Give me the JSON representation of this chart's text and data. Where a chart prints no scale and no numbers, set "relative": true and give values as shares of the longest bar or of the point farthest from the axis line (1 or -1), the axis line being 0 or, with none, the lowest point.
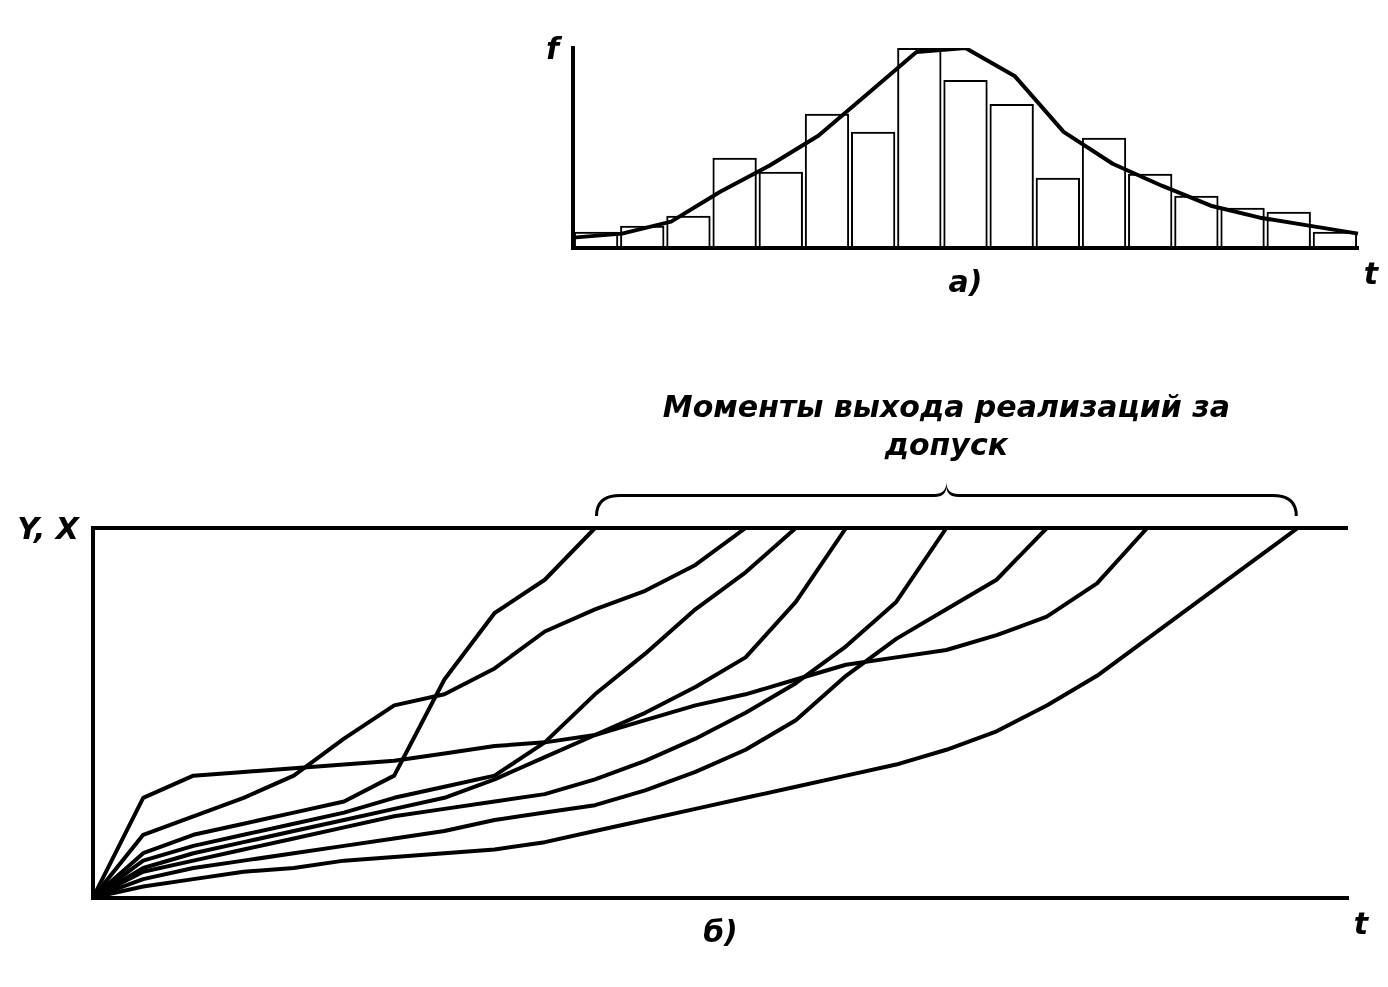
{
  "chart_data": [
    {
      "type": "bar",
      "relative": true,
      "xlabel": "t",
      "ylabel": "f",
      "annotations": [
        "а)"
      ],
      "legend": false,
      "grid": false,
      "categories": [
        null,
        null,
        null,
        null,
        null,
        null,
        null,
        null,
        null,
        null,
        null,
        null,
        null,
        null,
        null,
        null,
        null
      ],
      "series": [
        {
          "type": "bar",
          "color": "#000000",
          "values": [
            0.08,
            0.11,
            0.16,
            0.45,
            0.38,
            0.67,
            0.58,
            1,
            0.84,
            0.72,
            0.35,
            0.55,
            0.37,
            0.26,
            0.2,
            0.18,
            0.08
          ]
        }
      ]
    },
    {
      "type": "line",
      "relative": true,
      "legend": false,
      "grid": false,
      "marker": "none",
      "categories": [
        null,
        null,
        null,
        null,
        null,
        null,
        null,
        null,
        null,
        null,
        null,
        null,
        null,
        null,
        null,
        null,
        null
      ],
      "series": [
        {
          "color": "#000000",
          "values": [
            0.05,
            0.07,
            0.13,
            0.28,
            0.41,
            0.56,
            0.77,
            0.98,
            1,
            0.86,
            0.58,
            0.42,
            0.31,
            0.21,
            0.15,
            0.11,
            0.07
          ]
        }
      ]
    },
    {
      "type": "line",
      "relative": true,
      "xlabel": "t",
      "ylabel": "Y, X",
      "annotations": [
        "Моменты выхода реализаций за допуск",
        "б)"
      ],
      "legend": false,
      "grid": false,
      "marker": "none",
      "categories": [
        null,
        null,
        null,
        null,
        null,
        null,
        null,
        null,
        null,
        null,
        null,
        null,
        null,
        null,
        null,
        null,
        null,
        null,
        null,
        null,
        null,
        null,
        null,
        null,
        null,
        null
      ],
      "ref_lines": [
        {
          "axis": "y",
          "value": 1,
          "color": "#000000"
        }
      ],
      "series": [
        {
          "color": "#000000",
          "values": [
            0,
            0.12,
            0.17,
            0.2,
            0.23,
            0.26,
            0.33,
            0.59,
            0.77,
            0.86,
            1,
            null,
            null,
            null,
            null,
            null,
            null,
            null,
            null,
            null,
            null,
            null,
            null,
            null,
            null,
            null
          ]
        },
        {
          "color": "#000000",
          "values": [
            0,
            0.17,
            0.22,
            0.27,
            0.33,
            0.43,
            0.52,
            0.55,
            0.62,
            0.72,
            0.78,
            0.83,
            0.9,
            1,
            null,
            null,
            null,
            null,
            null,
            null,
            null,
            null,
            null,
            null,
            null,
            null
          ]
        },
        {
          "color": "#000000",
          "values": [
            0,
            0.1,
            0.14,
            0.17,
            0.2,
            0.23,
            0.27,
            0.3,
            0.33,
            0.42,
            0.55,
            0.66,
            0.78,
            0.88,
            1,
            null,
            null,
            null,
            null,
            null,
            null,
            null,
            null,
            null,
            null,
            null
          ]
        },
        {
          "color": "#000000",
          "values": [
            0,
            0.08,
            0.12,
            0.15,
            0.18,
            0.21,
            0.24,
            0.27,
            0.32,
            0.38,
            0.44,
            0.5,
            0.57,
            0.65,
            0.8,
            1,
            null,
            null,
            null,
            null,
            null,
            null,
            null,
            null,
            null,
            null
          ]
        },
        {
          "color": "#000000",
          "values": [
            0,
            0.07,
            0.1,
            0.13,
            0.16,
            0.19,
            0.22,
            0.24,
            0.26,
            0.28,
            0.32,
            0.37,
            0.43,
            0.5,
            0.58,
            0.68,
            0.8,
            1,
            null,
            null,
            null,
            null,
            null,
            null,
            null,
            null
          ]
        },
        {
          "color": "#000000",
          "values": [
            0,
            0.05,
            0.08,
            0.1,
            0.12,
            0.14,
            0.16,
            0.18,
            0.21,
            0.23,
            0.25,
            0.29,
            0.34,
            0.4,
            0.48,
            0.6,
            0.7,
            0.78,
            0.86,
            1,
            null,
            null,
            null,
            null,
            null,
            null
          ]
        },
        {
          "color": "#000000",
          "values": [
            0,
            0.27,
            0.33,
            0.34,
            0.35,
            0.36,
            0.37,
            0.39,
            0.41,
            0.42,
            0.44,
            0.48,
            0.52,
            0.55,
            0.59,
            0.63,
            0.65,
            0.67,
            0.71,
            0.76,
            0.85,
            1,
            null,
            null,
            null,
            null
          ]
        },
        {
          "color": "#000000",
          "values": [
            0,
            0.03,
            0.05,
            0.07,
            0.08,
            0.1,
            0.11,
            0.12,
            0.13,
            0.15,
            0.18,
            0.21,
            0.24,
            0.27,
            0.3,
            0.33,
            0.36,
            0.4,
            0.45,
            0.52,
            0.6,
            0.7,
            0.8,
            0.9,
            1,
            null
          ]
        }
      ]
    }
  ]
}
